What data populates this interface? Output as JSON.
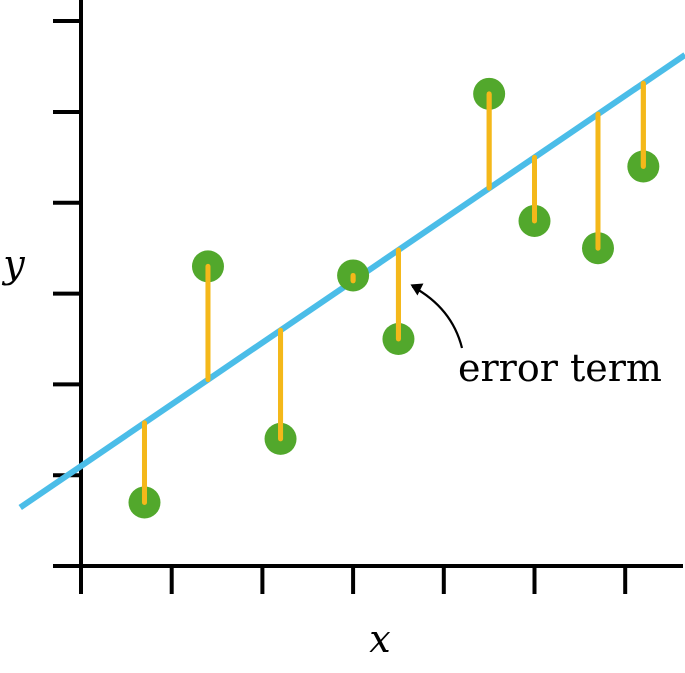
{
  "chart_data": {
    "type": "scatter",
    "title": "",
    "xlabel": "x",
    "ylabel": "y",
    "xlim": [
      0,
      7
    ],
    "ylim": [
      0,
      6
    ],
    "x_ticks": [
      1,
      2,
      3,
      4,
      5,
      6
    ],
    "y_ticks": [
      1,
      2,
      3,
      4,
      5
    ],
    "tick_labels_shown": false,
    "grid": false,
    "legend": "none",
    "regression_line": {
      "intercept": 1.1,
      "slope": 0.68
    },
    "points": [
      {
        "x": 0.7,
        "y": 0.7
      },
      {
        "x": 1.4,
        "y": 3.3
      },
      {
        "x": 2.2,
        "y": 1.4
      },
      {
        "x": 3.0,
        "y": 3.2
      },
      {
        "x": 3.5,
        "y": 2.5
      },
      {
        "x": 4.5,
        "y": 5.2
      },
      {
        "x": 5.0,
        "y": 3.8
      },
      {
        "x": 5.7,
        "y": 3.5
      },
      {
        "x": 6.2,
        "y": 4.4
      }
    ],
    "annotation": {
      "text": "error term",
      "points_to_point_index": 4
    },
    "colors": {
      "line": "#4bbde8",
      "points": "#52a82c",
      "error_bars": "#f4b81a",
      "axes": "#000000"
    }
  }
}
